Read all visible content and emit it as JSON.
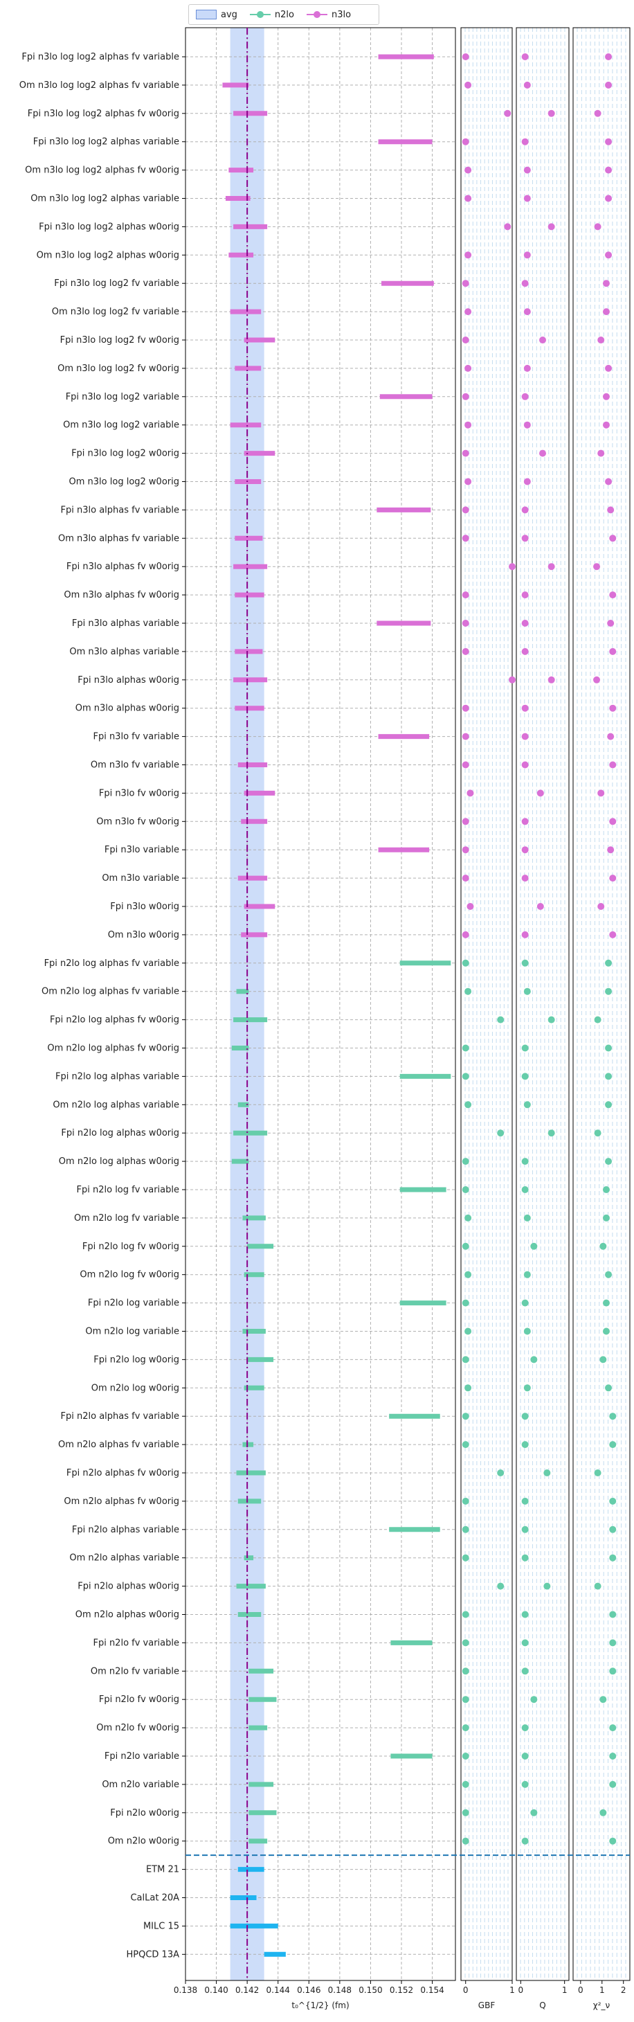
{
  "legend": {
    "avg_label": "avg",
    "n2lo_label": "n2lo",
    "n3lo_label": "n3lo"
  },
  "colors": {
    "n3lo": "#da70d6",
    "n2lo": "#66cdaa",
    "lattice": "#1eb4f0",
    "avg_band": "#6495ed",
    "avg_line": "#8b008b",
    "separator": "#1f77b4"
  },
  "chart_data": [
    {
      "type": "errorbar",
      "xlabel": "t₀^{1/2} (fm)",
      "xlim": [
        0.138,
        0.1555
      ],
      "xticks": [
        "0.138",
        "0.140",
        "0.142",
        "0.144",
        "0.146",
        "0.148",
        "0.150",
        "0.152",
        "0.154"
      ],
      "avg": {
        "center": 0.142,
        "band": [
          0.1409,
          0.1431
        ]
      },
      "grid": true,
      "categories": [
        "Fpi n3lo log log2 alphas fv variable",
        "Om n3lo log log2 alphas fv variable",
        "Fpi n3lo log log2 alphas fv w0orig",
        "Fpi n3lo log log2 alphas variable",
        "Om n3lo log log2 alphas fv w0orig",
        "Om n3lo log log2 alphas variable",
        "Fpi n3lo log log2 alphas w0orig",
        "Om n3lo log log2 alphas w0orig",
        "Fpi n3lo log log2 fv variable",
        "Om n3lo log log2 fv variable",
        "Fpi n3lo log log2 fv w0orig",
        "Om n3lo log log2 fv w0orig",
        "Fpi n3lo log log2 variable",
        "Om n3lo log log2 variable",
        "Fpi n3lo log log2 w0orig",
        "Om n3lo log log2 w0orig",
        "Fpi n3lo alphas fv variable",
        "Om n3lo alphas fv variable",
        "Fpi n3lo alphas fv w0orig",
        "Om n3lo alphas fv w0orig",
        "Fpi n3lo alphas variable",
        "Om n3lo alphas variable",
        "Fpi n3lo alphas w0orig",
        "Om n3lo alphas w0orig",
        "Fpi n3lo fv variable",
        "Om n3lo fv variable",
        "Fpi n3lo fv w0orig",
        "Om n3lo fv w0orig",
        "Fpi n3lo variable",
        "Om n3lo variable",
        "Fpi n3lo w0orig",
        "Om n3lo w0orig",
        "Fpi n2lo log alphas fv variable",
        "Om n2lo log alphas fv variable",
        "Fpi n2lo log alphas fv w0orig",
        "Om n2lo log alphas fv w0orig",
        "Fpi n2lo log alphas variable",
        "Om n2lo log alphas variable",
        "Fpi n2lo log alphas w0orig",
        "Om n2lo log alphas w0orig",
        "Fpi n2lo log fv variable",
        "Om n2lo log fv variable",
        "Fpi n2lo log fv w0orig",
        "Om n2lo log fv w0orig",
        "Fpi n2lo log variable",
        "Om n2lo log variable",
        "Fpi n2lo log w0orig",
        "Om n2lo log w0orig",
        "Fpi n2lo alphas fv variable",
        "Om n2lo alphas fv variable",
        "Fpi n2lo alphas fv w0orig",
        "Om n2lo alphas fv w0orig",
        "Fpi n2lo alphas variable",
        "Om n2lo alphas variable",
        "Fpi n2lo alphas w0orig",
        "Om n2lo alphas w0orig",
        "Fpi n2lo fv variable",
        "Om n2lo fv variable",
        "Fpi n2lo fv w0orig",
        "Om n2lo fv w0orig",
        "Fpi n2lo variable",
        "Om n2lo variable",
        "Fpi n2lo w0orig",
        "Om n2lo w0orig",
        "ETM 21",
        "CalLat 20A",
        "MILC 15",
        "HPQCD 13A"
      ],
      "series": [
        {
          "name": "n3lo",
          "group": "n3lo",
          "intervals": [
            [
              0.1505,
              0.1541
            ],
            [
              0.1404,
              0.1421
            ],
            [
              0.1411,
              0.1433
            ],
            [
              0.1505,
              0.154
            ],
            [
              0.1408,
              0.1424
            ],
            [
              0.1406,
              0.1422
            ],
            [
              0.1411,
              0.1433
            ],
            [
              0.1408,
              0.1424
            ],
            [
              0.1507,
              0.1541
            ],
            [
              0.1409,
              0.1429
            ],
            [
              0.1418,
              0.1438
            ],
            [
              0.1412,
              0.1429
            ],
            [
              0.1506,
              0.154
            ],
            [
              0.1409,
              0.1429
            ],
            [
              0.1418,
              0.1438
            ],
            [
              0.1412,
              0.1429
            ],
            [
              0.1504,
              0.1539
            ],
            [
              0.1412,
              0.143
            ],
            [
              0.1411,
              0.1433
            ],
            [
              0.1412,
              0.1431
            ],
            [
              0.1504,
              0.1539
            ],
            [
              0.1412,
              0.143
            ],
            [
              0.1411,
              0.1433
            ],
            [
              0.1412,
              0.1431
            ],
            [
              0.1505,
              0.1538
            ],
            [
              0.1414,
              0.1433
            ],
            [
              0.1418,
              0.1438
            ],
            [
              0.1416,
              0.1433
            ],
            [
              0.1505,
              0.1538
            ],
            [
              0.1414,
              0.1433
            ],
            [
              0.1418,
              0.1438
            ],
            [
              0.1416,
              0.1433
            ]
          ]
        },
        {
          "name": "n2lo",
          "group": "n2lo",
          "intervals": [
            [
              0.1519,
              0.1552
            ],
            [
              0.1413,
              0.1421
            ],
            [
              0.1411,
              0.1433
            ],
            [
              0.141,
              0.1421
            ],
            [
              0.1519,
              0.1552
            ],
            [
              0.1414,
              0.1421
            ],
            [
              0.1411,
              0.1433
            ],
            [
              0.141,
              0.1421
            ],
            [
              0.1519,
              0.1549
            ],
            [
              0.1417,
              0.1432
            ],
            [
              0.142,
              0.1437
            ],
            [
              0.1418,
              0.1431
            ],
            [
              0.1519,
              0.1549
            ],
            [
              0.1417,
              0.1432
            ],
            [
              0.142,
              0.1437
            ],
            [
              0.1418,
              0.1431
            ],
            [
              0.1512,
              0.1545
            ],
            [
              0.1417,
              0.1424
            ],
            [
              0.1413,
              0.1432
            ],
            [
              0.1414,
              0.1429
            ],
            [
              0.1512,
              0.1545
            ],
            [
              0.1418,
              0.1424
            ],
            [
              0.1413,
              0.1432
            ],
            [
              0.1414,
              0.1429
            ],
            [
              0.1513,
              0.154
            ],
            [
              0.1421,
              0.1437
            ],
            [
              0.1421,
              0.1439
            ],
            [
              0.1421,
              0.1433
            ],
            [
              0.1513,
              0.154
            ],
            [
              0.1421,
              0.1437
            ],
            [
              0.1421,
              0.1439
            ],
            [
              0.1421,
              0.1433
            ]
          ]
        },
        {
          "name": "lattice",
          "group": "lattice",
          "intervals": [
            [
              0.1414,
              0.1431
            ],
            [
              0.1409,
              0.1426
            ],
            [
              0.1409,
              0.144
            ],
            [
              0.1431,
              0.1445
            ]
          ]
        }
      ]
    },
    {
      "type": "scatter",
      "xlabel": "GBF",
      "xlim": [
        -0.1,
        1.0
      ],
      "xticks": [
        "0",
        "1"
      ],
      "n3lo": [
        0.0,
        0.05,
        0.9,
        0.0,
        0.05,
        0.05,
        0.9,
        0.05,
        0.0,
        0.05,
        0.0,
        0.05,
        0.0,
        0.05,
        0.0,
        0.05,
        0.0,
        0.0,
        1.0,
        0.0,
        0.0,
        0.0,
        1.0,
        0.0,
        0.0,
        0.0,
        0.1,
        0.0,
        0.0,
        0.0,
        0.1,
        0.0
      ],
      "n2lo": [
        0.0,
        0.05,
        0.75,
        0.0,
        0.0,
        0.05,
        0.75,
        0.0,
        0.0,
        0.05,
        0.0,
        0.05,
        0.0,
        0.05,
        0.0,
        0.05,
        0.0,
        0.0,
        0.75,
        0.0,
        0.0,
        0.0,
        0.75,
        0.0,
        0.0,
        0.0,
        0.0,
        0.0,
        0.0,
        0.0,
        0.0,
        0.0
      ]
    },
    {
      "type": "scatter",
      "xlabel": "Q",
      "xlim": [
        -0.1,
        1.1
      ],
      "xticks": [
        "0",
        "1"
      ],
      "n3lo": [
        0.1,
        0.15,
        0.7,
        0.1,
        0.15,
        0.15,
        0.7,
        0.15,
        0.1,
        0.15,
        0.5,
        0.15,
        0.1,
        0.15,
        0.5,
        0.15,
        0.1,
        0.1,
        0.7,
        0.1,
        0.1,
        0.1,
        0.7,
        0.1,
        0.1,
        0.1,
        0.45,
        0.1,
        0.1,
        0.1,
        0.45,
        0.1
      ],
      "n2lo": [
        0.1,
        0.15,
        0.7,
        0.1,
        0.1,
        0.15,
        0.7,
        0.1,
        0.1,
        0.15,
        0.3,
        0.15,
        0.1,
        0.15,
        0.3,
        0.15,
        0.1,
        0.1,
        0.6,
        0.1,
        0.1,
        0.1,
        0.6,
        0.1,
        0.1,
        0.1,
        0.3,
        0.1,
        0.1,
        0.1,
        0.3,
        0.1
      ]
    },
    {
      "type": "scatter",
      "xlabel": "χ²_ν",
      "xlim": [
        -0.35,
        2.3
      ],
      "xticks": [
        "0",
        "1",
        "2"
      ],
      "n3lo": [
        1.3,
        1.3,
        0.8,
        1.3,
        1.3,
        1.3,
        0.8,
        1.3,
        1.2,
        1.2,
        0.95,
        1.3,
        1.2,
        1.2,
        0.95,
        1.3,
        1.4,
        1.5,
        0.75,
        1.5,
        1.4,
        1.5,
        0.75,
        1.5,
        1.4,
        1.5,
        0.95,
        1.5,
        1.4,
        1.5,
        0.95,
        1.5
      ],
      "n2lo": [
        1.3,
        1.3,
        0.8,
        1.3,
        1.3,
        1.3,
        0.8,
        1.3,
        1.2,
        1.2,
        1.05,
        1.3,
        1.2,
        1.2,
        1.05,
        1.3,
        1.5,
        1.5,
        0.8,
        1.5,
        1.5,
        1.5,
        0.8,
        1.5,
        1.5,
        1.5,
        1.05,
        1.5,
        1.5,
        1.5,
        1.05,
        1.5
      ]
    }
  ]
}
